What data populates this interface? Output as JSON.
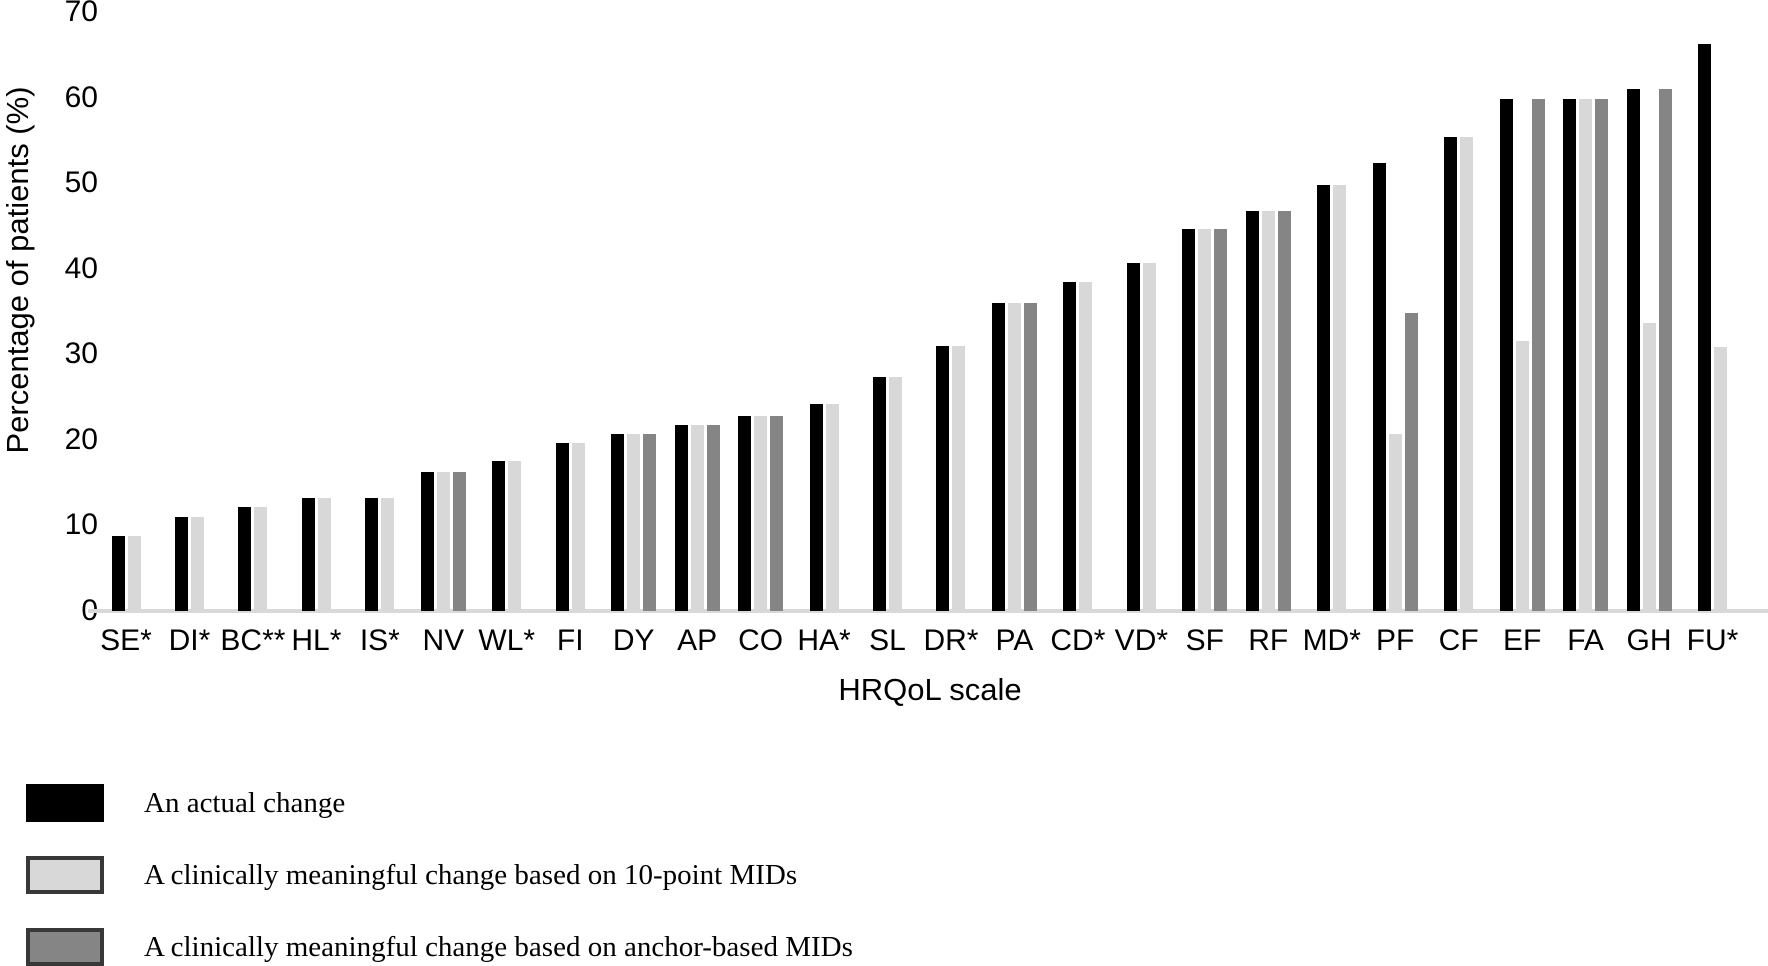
{
  "chart_data": {
    "type": "bar",
    "title": "",
    "xlabel": "HRQoL scale",
    "ylabel": "Percentage of patients (%)",
    "ylim": [
      0,
      70
    ],
    "yticks": [
      0,
      10,
      20,
      30,
      40,
      50,
      60,
      70
    ],
    "grid": false,
    "legend_position": "bottom-left",
    "categories": [
      "SE*",
      "DI*",
      "BC**",
      "HL*",
      "IS*",
      "NV",
      "WL*",
      "FI",
      "DY",
      "AP",
      "CO",
      "HA*",
      "SL",
      "DR*",
      "PA",
      "CD*",
      "VD*",
      "SF",
      "RF",
      "MD*",
      "PF",
      "CF",
      "EF",
      "FA",
      "GH",
      "FU*"
    ],
    "series": [
      {
        "name": "An actual change",
        "color": "#000000",
        "swatch_border": "#000000",
        "values": [
          8.8,
          11.0,
          12.1,
          13.2,
          13.2,
          16.2,
          17.5,
          19.6,
          20.7,
          21.7,
          22.8,
          24.2,
          27.3,
          31.0,
          36.0,
          38.5,
          40.7,
          44.6,
          46.7,
          49.8,
          52.3,
          55.4,
          59.8,
          59.8,
          61.0,
          66.3
        ]
      },
      {
        "name": "A clinically meaningful change based on 10-point MIDs",
        "color": "#d8d8d8",
        "swatch_border": "#383838",
        "values": [
          8.8,
          11.0,
          12.1,
          13.2,
          13.2,
          16.2,
          17.5,
          19.6,
          20.7,
          21.7,
          22.8,
          24.2,
          27.3,
          31.0,
          36.0,
          38.5,
          40.7,
          44.6,
          46.7,
          49.8,
          20.7,
          55.4,
          31.5,
          59.8,
          33.7,
          30.8
        ]
      },
      {
        "name": "A clinically meaningful change based on anchor-based MIDs",
        "color": "#858585",
        "swatch_border": "#383838",
        "values": [
          null,
          null,
          null,
          null,
          null,
          16.2,
          null,
          null,
          20.7,
          21.7,
          22.8,
          null,
          null,
          null,
          36.0,
          null,
          null,
          44.6,
          46.7,
          null,
          34.8,
          null,
          59.8,
          59.8,
          61.0,
          null
        ]
      }
    ],
    "axis_line_color": "#d9d9d9"
  }
}
